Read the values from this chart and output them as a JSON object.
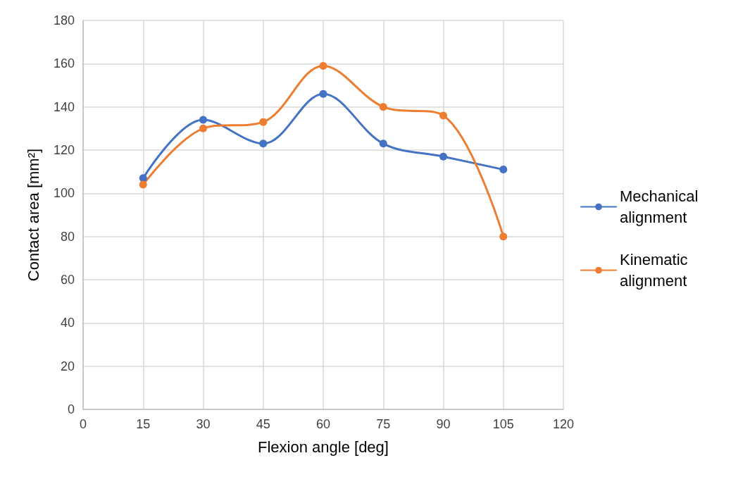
{
  "chart_data": {
    "type": "line",
    "xlabel": "Flexion angle [deg]",
    "ylabel": "Contact area [mm²]",
    "x": [
      15,
      30,
      45,
      60,
      75,
      90,
      105
    ],
    "series": [
      {
        "name": "Mechanical alignment",
        "color": "#4472c4",
        "values": [
          107,
          134,
          123,
          146,
          123,
          117,
          111
        ]
      },
      {
        "name": "Kinematic alignment",
        "color": "#ed7d31",
        "values": [
          104,
          130,
          133,
          159,
          140,
          136,
          80
        ]
      }
    ],
    "xlim": [
      0,
      120
    ],
    "xticks": [
      0,
      15,
      30,
      45,
      60,
      75,
      90,
      105,
      120
    ],
    "ylim": [
      0,
      180
    ],
    "yticks": [
      0,
      20,
      40,
      60,
      80,
      100,
      120,
      140,
      160,
      180
    ],
    "grid": true,
    "legend": "right",
    "marker": "circle",
    "line_style": "solid"
  }
}
